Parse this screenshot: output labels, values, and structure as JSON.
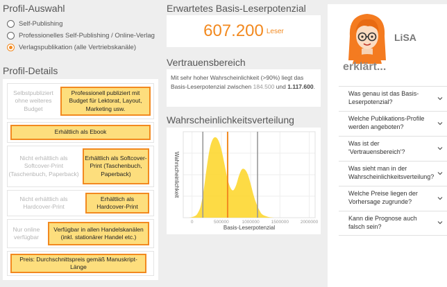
{
  "profile_select": {
    "title": "Profil-Auswahl",
    "options": [
      {
        "label": "Self-Publishing",
        "checked": false
      },
      {
        "label": "Professionelles Self-Publishing / Online-Verlag",
        "checked": false
      },
      {
        "label": "Verlagspublikation (alle Vertriebskanäle)",
        "checked": true
      }
    ]
  },
  "profile_details": {
    "title": "Profil-Details",
    "rows": [
      {
        "left": "Selbstpubliziert ohne weiteres Budget",
        "highlight": "Professionell publiziert mit Budget für Lektorat, Layout, Marketing usw."
      },
      {
        "left": "",
        "highlight": "Erhältlich als Ebook"
      },
      {
        "left": "Nicht erhältlich als Softcover-Print (Taschenbuch, Paperback)",
        "highlight": "Erhältlich als Softcover-Print (Taschenbuch, Paperback)"
      },
      {
        "left": "Nicht erhältlich als Hardcover-Print",
        "highlight": "Erhältlich als Hardcover-Print"
      },
      {
        "left": "Nur online verfügbar",
        "highlight": "Verfügbar in allen Handelskanälen (inkl. stationärer Handel etc.)"
      },
      {
        "left": "",
        "highlight": "Preis: Durchschnittspreis gemäß Manuskript-Länge"
      }
    ]
  },
  "potential": {
    "title": "Erwartetes Basis-Leserpotenzial",
    "value": "607.200",
    "unit": "Leser"
  },
  "confidence": {
    "title": "Vertrauensbereich",
    "text_before": "Mit sehr hoher Wahrscheinlichkeit (>90%) liegt das Basis-Leserpotenzial zwischen ",
    "low": "184.500",
    "text_mid": " und ",
    "high": "1.117.600",
    "text_after": "."
  },
  "distribution": {
    "title": "Wahrscheinlichkeitsverteilung"
  },
  "chart_data": {
    "type": "area",
    "xlabel": "Basis-Leserpotenzial",
    "ylabel": "Wahrscheinlichkeit",
    "xlim": [
      -150000,
      2100000
    ],
    "x_ticks": [
      0,
      500000,
      1000000,
      1500000,
      2000000
    ],
    "x_tick_labels": [
      "0",
      "500000",
      "1000000",
      "1500000",
      "2000000"
    ],
    "y_ticks_visible": false,
    "x": [
      -150000,
      -50000,
      50000,
      100000,
      150000,
      200000,
      250000,
      300000,
      350000,
      400000,
      450000,
      500000,
      550000,
      600000,
      650000,
      700000,
      750000,
      800000,
      850000,
      900000,
      950000,
      1000000,
      1050000,
      1100000,
      1150000,
      1200000,
      1300000,
      1400000
    ],
    "y": [
      0,
      0,
      0.02,
      0.06,
      0.15,
      0.35,
      0.62,
      0.85,
      0.97,
      1.0,
      0.96,
      0.85,
      0.68,
      0.5,
      0.38,
      0.34,
      0.4,
      0.52,
      0.6,
      0.6,
      0.54,
      0.42,
      0.28,
      0.17,
      0.09,
      0.04,
      0.01,
      0
    ],
    "vertical_lines": [
      {
        "x": 184500,
        "color": "#999999"
      },
      {
        "x": 607200,
        "color": "#f2891f"
      },
      {
        "x": 1117600,
        "color": "#999999"
      }
    ],
    "fill_color": "#fdd835",
    "grid": true
  },
  "lisa": {
    "name": "LiSA",
    "explains": "erklärt...",
    "faq": [
      "Was genau ist das Basis-Leserpotenzial?",
      "Welche Publikations-Profile werden angeboten?",
      "Was ist der 'Vertrauensbereich'?",
      "Was sieht man in der Wahrscheinlichkeitsverteilung?",
      "Welche Preise liegen der Vorhersage zugrunde?",
      "Kann die Prognose auch falsch sein?"
    ]
  },
  "colors": {
    "accent": "#f2891f",
    "highlight_bg": "#fdde7d",
    "density_fill": "#fdd835"
  },
  "icons": [
    "chevron-down-icon",
    "avatar"
  ]
}
